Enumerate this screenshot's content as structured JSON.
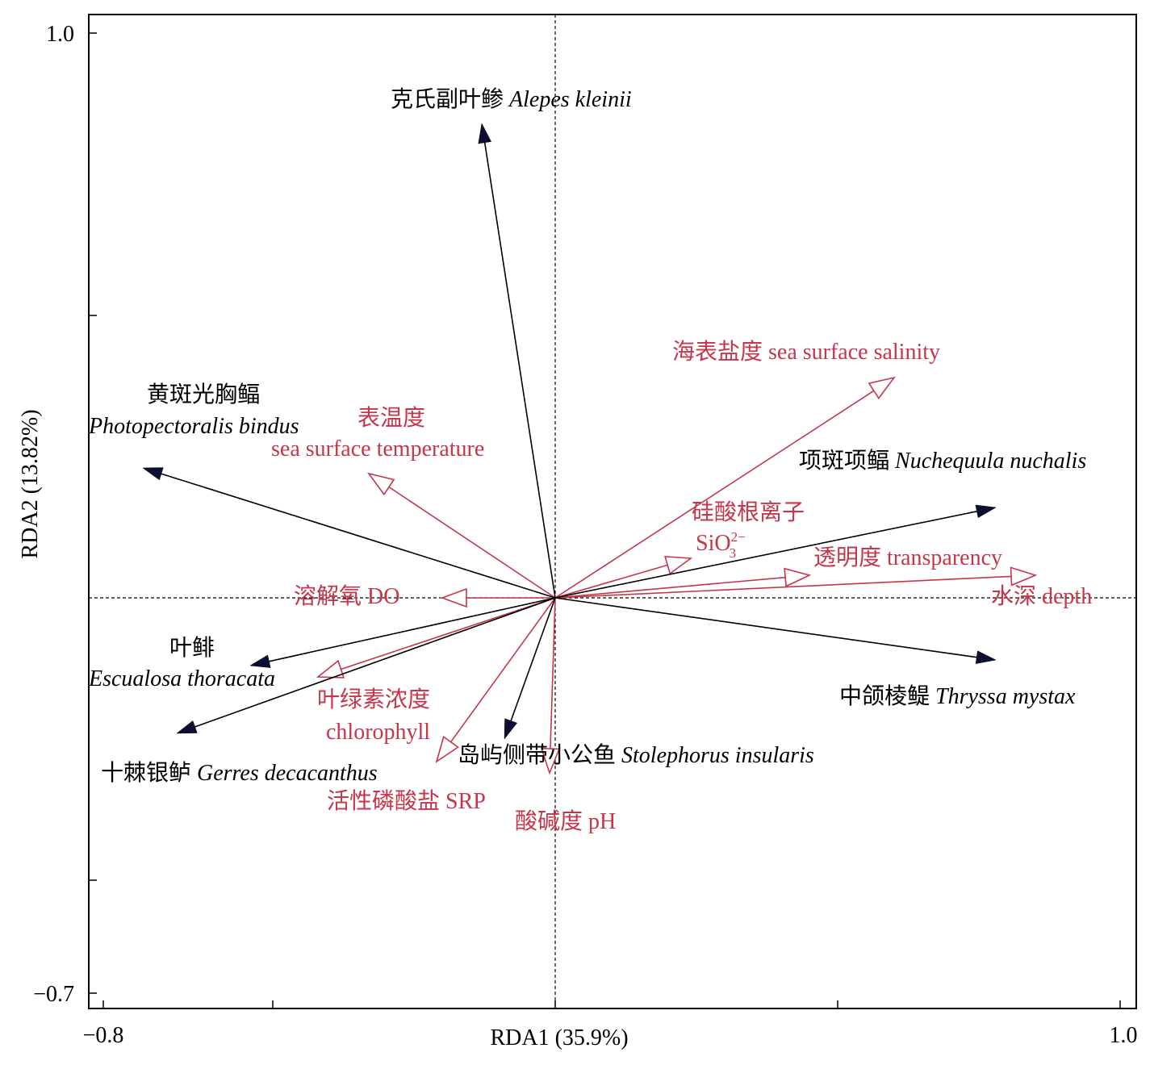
{
  "chart_data": {
    "type": "scatter",
    "subtype": "rda-biplot",
    "xlabel": "RDA1 (35.9%)",
    "ylabel": "RDA2 (13.82%)",
    "xlim": [
      -0.8,
      1.0
    ],
    "ylim": [
      -0.7,
      1.0
    ],
    "x_tick_labels": [
      "−0.8",
      "1.0"
    ],
    "y_tick_labels": [
      "1.0",
      "−0.7"
    ],
    "x_ticks": [
      -0.8,
      -0.5,
      0.0,
      0.5,
      1.0
    ],
    "y_ticks": [
      -0.7,
      -0.5,
      0.5,
      1.0
    ],
    "reference_lines": "dashed lines at x=0 and y=0",
    "colors": {
      "species": "#0b0f33",
      "environment": "#c6364a"
    },
    "species": [
      {
        "cn": "克氏副叶鲹",
        "latin": "Alepes kleinii",
        "x": -0.13,
        "y": 0.84
      },
      {
        "cn": "黄斑光胸鲾",
        "latin": "Photopectoralis bindus",
        "x": -0.73,
        "y": 0.23
      },
      {
        "cn": "项斑项鲾",
        "latin": "Nuchequula nuchalis",
        "x": 0.78,
        "y": 0.16
      },
      {
        "cn": "叶鲱",
        "latin": "Escualosa thoracata",
        "x": -0.54,
        "y": -0.12
      },
      {
        "cn": "十棘银鲈",
        "latin": "Gerres decacanthus",
        "x": -0.67,
        "y": -0.24
      },
      {
        "cn": "中颌棱鳀",
        "latin": "Thryssa mystax",
        "x": 0.78,
        "y": -0.11
      },
      {
        "cn": "岛屿侧带小公鱼",
        "latin": "Stolephorus insularis",
        "x": -0.09,
        "y": -0.25
      }
    ],
    "environment": [
      {
        "name": "海表盐度 sea surface salinity",
        "x": 0.6,
        "y": 0.39
      },
      {
        "name": "表温度 sea surface temperature",
        "x": -0.33,
        "y": 0.22
      },
      {
        "name": "硅酸根离子 SiO3 2−",
        "x": 0.24,
        "y": 0.07
      },
      {
        "name": "透明度 transparency",
        "x": 0.45,
        "y": 0.04
      },
      {
        "name": "水深 depth",
        "x": 0.85,
        "y": 0.04
      },
      {
        "name": "溶解氧 DO",
        "x": -0.2,
        "y": 0.0
      },
      {
        "name": "叶绿素浓度 chlorophyll",
        "x": -0.42,
        "y": -0.14
      },
      {
        "name": "活性磷酸盐 SRP",
        "x": -0.21,
        "y": -0.29
      },
      {
        "name": "酸碱度 pH",
        "x": -0.01,
        "y": -0.31
      }
    ],
    "labels": {
      "alepes_cn": "克氏副叶鲹",
      "alepes_lat": "Alepes kleinii",
      "photo_cn": "黄斑光胸鲾",
      "photo_lat": "Photopectoralis bindus",
      "nuche_cn": "项斑项鲾",
      "nuche_lat": "Nuchequula nuchalis",
      "escu_cn": "叶鲱",
      "escu_lat": "Escualosa thoracata",
      "gerres_cn": "十棘银鲈",
      "gerres_lat": "Gerres decacanthus",
      "thryssa_cn": "中颌棱鳀",
      "thryssa_lat": "Thryssa mystax",
      "stole_cn": "岛屿侧带小公鱼",
      "stole_lat": "Stolephorus insularis",
      "salinity": "海表盐度 sea surface salinity",
      "temp_cn": "表温度",
      "temp_en": "sea surface temperature",
      "sio_cn": "硅酸根离子",
      "sio_base": "SiO",
      "sio_sup": "2−",
      "sio_sub": "3",
      "transparency": "透明度 transparency",
      "depth": "水深 depth",
      "do": "溶解氧 DO",
      "chl_cn": "叶绿素浓度",
      "chl_en": "chlorophyll",
      "srp": "活性磷酸盐 SRP",
      "ph": "酸碱度 pH"
    }
  }
}
